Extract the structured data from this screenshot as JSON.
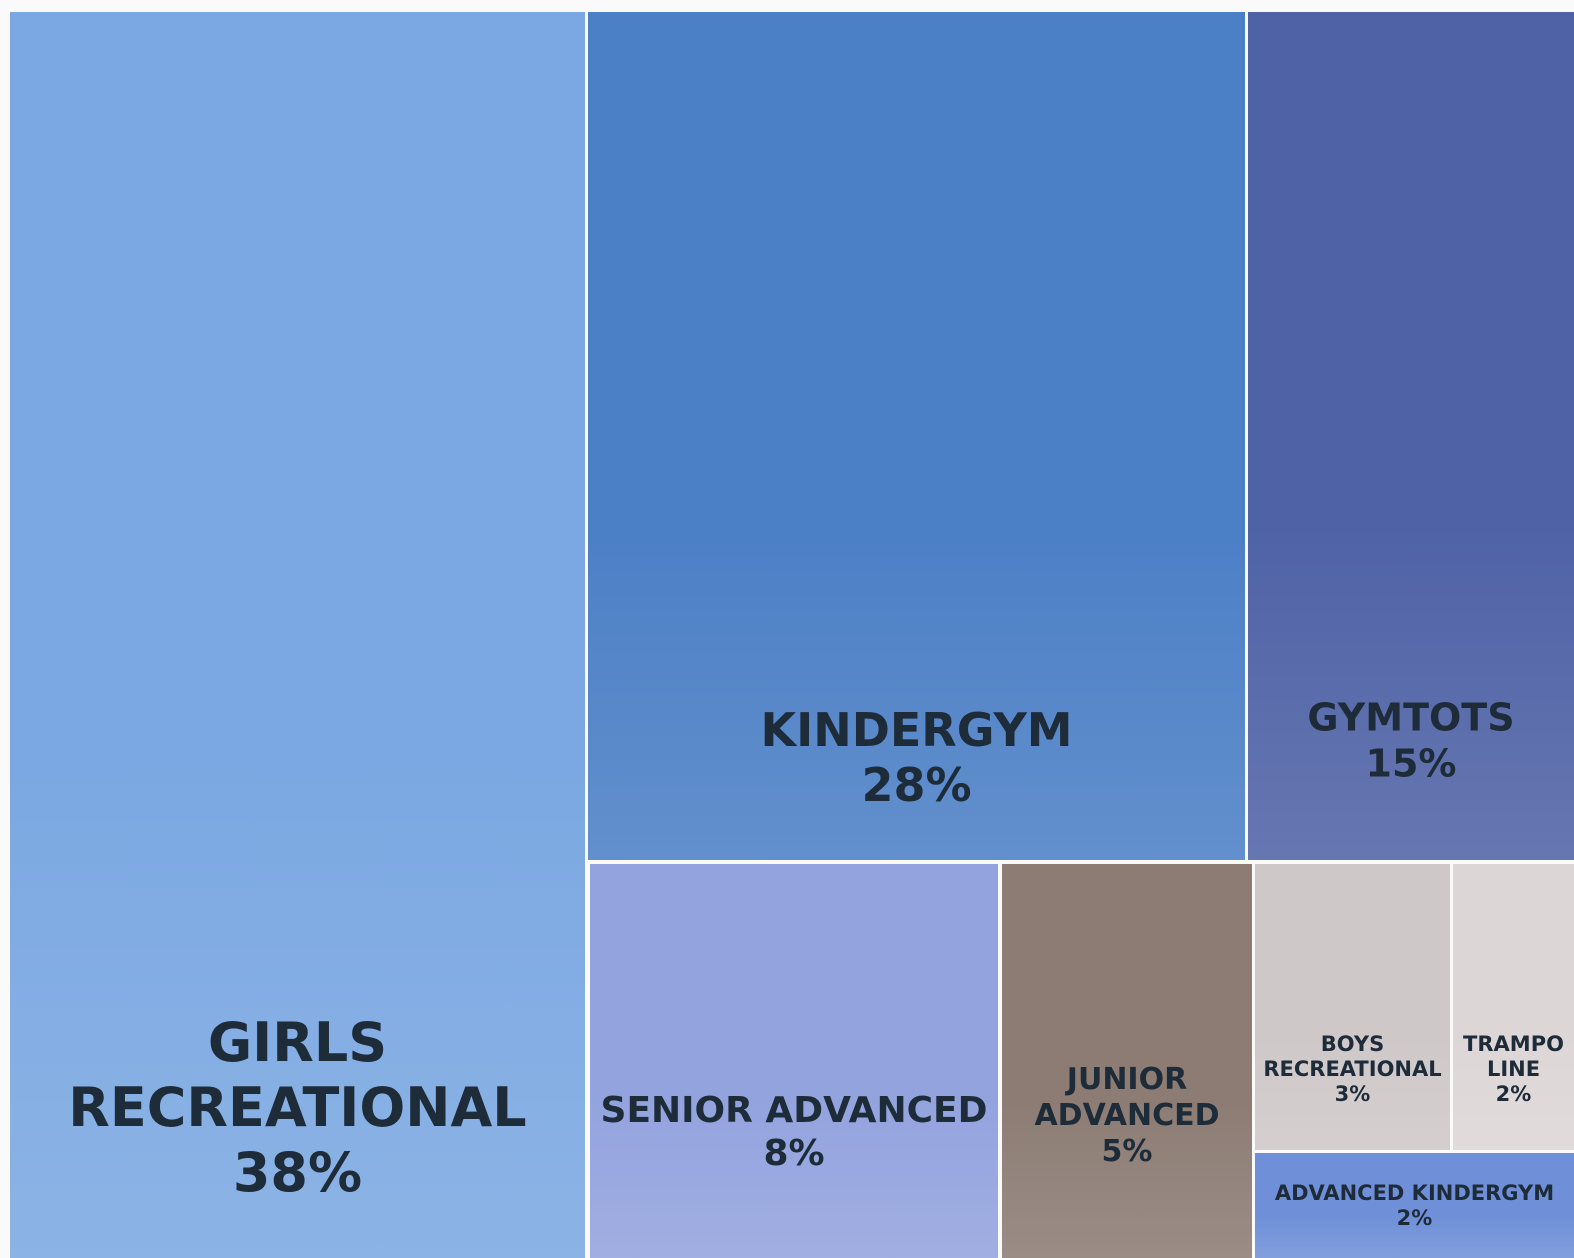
{
  "chart_data": {
    "type": "treemap",
    "categories": [
      "GIRLS RECREATIONAL",
      "KINDERGYM",
      "GYMTOTS",
      "SENIOR ADVANCED",
      "JUNIOR ADVANCED",
      "BOYS RECREATIONAL",
      "TRAMPO LINE",
      "ADVANCED KINDERGYM"
    ],
    "values": [
      38,
      28,
      15,
      8,
      5,
      3,
      2,
      2
    ],
    "value_labels": [
      "38%",
      "28%",
      "15%",
      "8%",
      "5%",
      "3%",
      "2%",
      "2%"
    ],
    "colors": [
      "#7ba8e2",
      "#4b7fc6",
      "#4f62a6",
      "#93a3de",
      "#8c7c74",
      "#cfc8c9",
      "#ddd6d7",
      "#6f90d8"
    ]
  }
}
